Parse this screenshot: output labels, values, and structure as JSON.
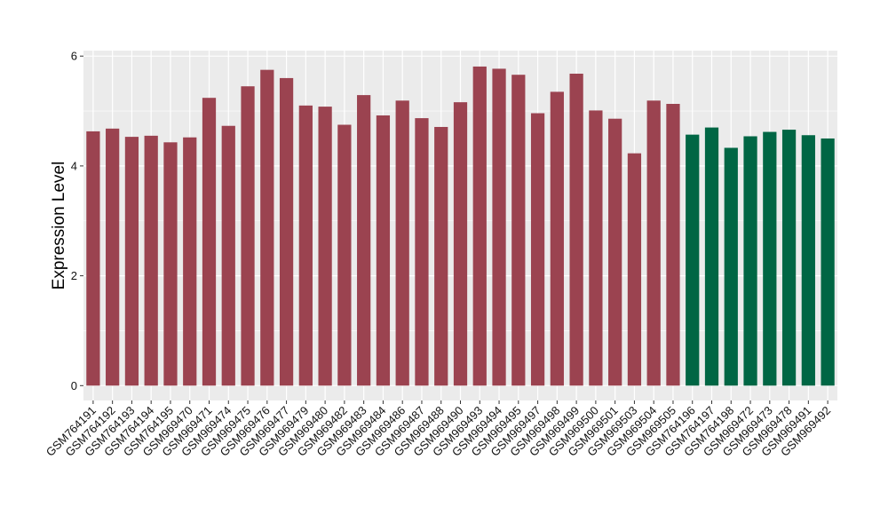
{
  "chart_data": {
    "type": "bar",
    "ylabel": "Expression Level",
    "xlabel": "",
    "ylim": [
      -0.27,
      6.1
    ],
    "yticks": [
      0,
      2,
      4,
      6
    ],
    "grid": true,
    "colors": {
      "groupA": "#9b4350",
      "groupB": "#006644",
      "panel": "#ebebeb",
      "grid": "#ffffff"
    },
    "categories": [
      "GSM764191",
      "GSM764192",
      "GSM764193",
      "GSM764194",
      "GSM764195",
      "GSM969470",
      "GSM969471",
      "GSM969474",
      "GSM969475",
      "GSM969476",
      "GSM969477",
      "GSM969479",
      "GSM969480",
      "GSM969482",
      "GSM969483",
      "GSM969484",
      "GSM969486",
      "GSM969487",
      "GSM969488",
      "GSM969490",
      "GSM969493",
      "GSM969494",
      "GSM969495",
      "GSM969497",
      "GSM969498",
      "GSM969499",
      "GSM969500",
      "GSM969501",
      "GSM969503",
      "GSM969504",
      "GSM969505",
      "GSM764196",
      "GSM764197",
      "GSM764198",
      "GSM969472",
      "GSM969473",
      "GSM969478",
      "GSM969491",
      "GSM969492"
    ],
    "values": [
      4.63,
      4.68,
      4.53,
      4.55,
      4.43,
      4.52,
      5.24,
      4.73,
      5.45,
      5.75,
      5.6,
      5.1,
      5.08,
      4.75,
      5.29,
      4.92,
      5.19,
      4.87,
      4.71,
      5.16,
      5.81,
      5.77,
      5.66,
      4.96,
      5.35,
      5.68,
      5.01,
      4.86,
      4.23,
      5.19,
      5.13,
      4.57,
      4.7,
      4.33,
      4.54,
      4.62,
      4.66,
      4.56,
      4.5
    ],
    "groups": [
      "A",
      "A",
      "A",
      "A",
      "A",
      "A",
      "A",
      "A",
      "A",
      "A",
      "A",
      "A",
      "A",
      "A",
      "A",
      "A",
      "A",
      "A",
      "A",
      "A",
      "A",
      "A",
      "A",
      "A",
      "A",
      "A",
      "A",
      "A",
      "A",
      "A",
      "A",
      "B",
      "B",
      "B",
      "B",
      "B",
      "B",
      "B",
      "B"
    ]
  }
}
